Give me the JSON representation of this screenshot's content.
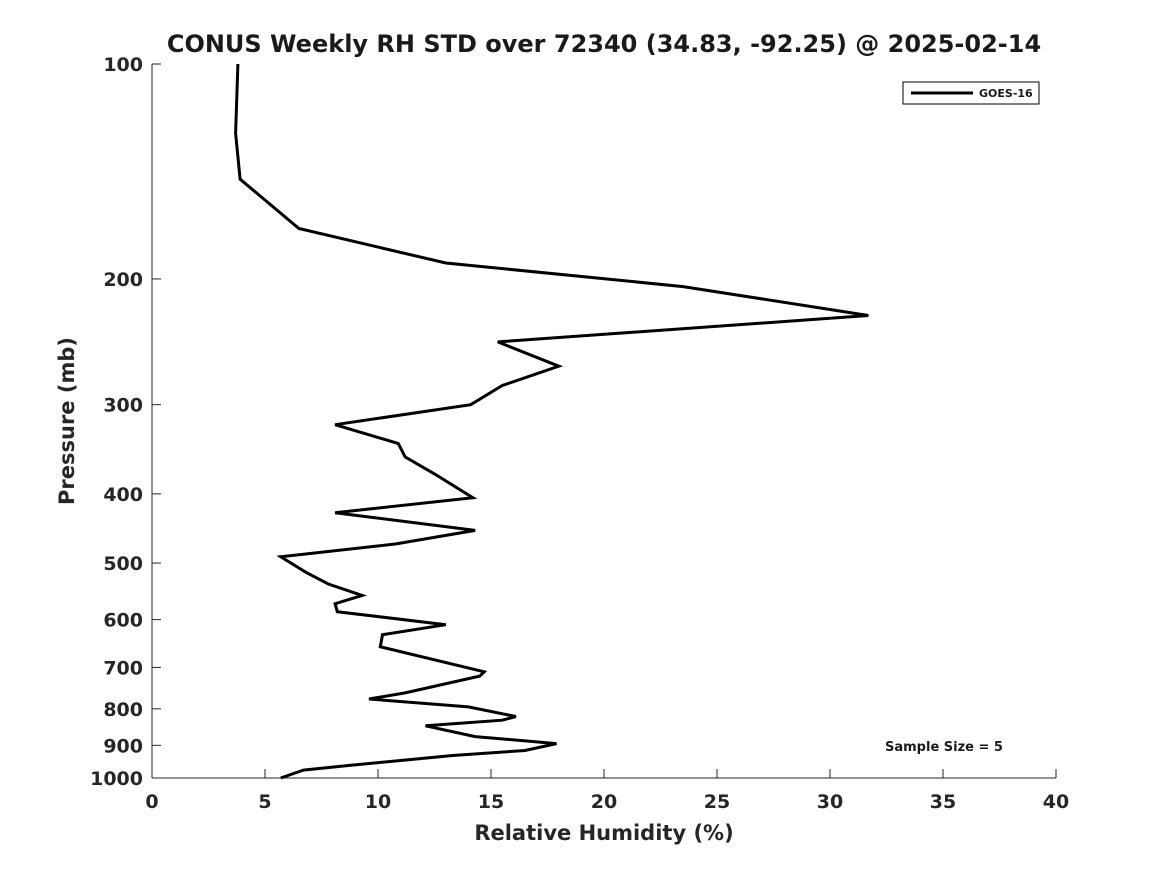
{
  "chart_data": {
    "type": "line",
    "title": "CONUS Weekly RH STD over 72340 (34.83, -92.25) @ 2025-02-14",
    "xlabel": "Relative Humidity (%)",
    "ylabel": "Pressure (mb)",
    "xlim": [
      0,
      40
    ],
    "ylim": [
      1000,
      100
    ],
    "yscale": "log",
    "y_reversed": true,
    "xticks": [
      0,
      5,
      10,
      15,
      20,
      25,
      30,
      35,
      40
    ],
    "yticks": [
      100,
      200,
      300,
      400,
      500,
      600,
      700,
      800,
      900,
      1000
    ],
    "grid": false,
    "legend_position": "top-right",
    "series": [
      {
        "name": "GOES-16",
        "color": "#000000",
        "points": [
          [
            3.8,
            100
          ],
          [
            3.7,
            125
          ],
          [
            3.9,
            145
          ],
          [
            6.5,
            170
          ],
          [
            13,
            190
          ],
          [
            23.5,
            205
          ],
          [
            31.7,
            225
          ],
          [
            15.3,
            245
          ],
          [
            18,
            265
          ],
          [
            15.5,
            282
          ],
          [
            14.1,
            300
          ],
          [
            8.1,
            320
          ],
          [
            10.9,
            340
          ],
          [
            11.2,
            355
          ],
          [
            12.5,
            375
          ],
          [
            14.2,
            405
          ],
          [
            8.1,
            425
          ],
          [
            14.3,
            450
          ],
          [
            10.8,
            470
          ],
          [
            5.7,
            490
          ],
          [
            6.8,
            515
          ],
          [
            7.8,
            535
          ],
          [
            9.3,
            555
          ],
          [
            8.1,
            570
          ],
          [
            8.2,
            585
          ],
          [
            13,
            610
          ],
          [
            10.2,
            630
          ],
          [
            10.1,
            655
          ],
          [
            14.7,
            710
          ],
          [
            14.5,
            720
          ],
          [
            11.2,
            760
          ],
          [
            9.6,
            775
          ],
          [
            14,
            795
          ],
          [
            16.1,
            820
          ],
          [
            15.5,
            830
          ],
          [
            12.1,
            845
          ],
          [
            14.3,
            875
          ],
          [
            17.9,
            895
          ],
          [
            16.5,
            915
          ],
          [
            13.3,
            930
          ],
          [
            8.8,
            960
          ],
          [
            6.7,
            975
          ],
          [
            5.7,
            1000
          ]
        ]
      }
    ],
    "annotations": [
      "Sample Size = 5"
    ]
  }
}
